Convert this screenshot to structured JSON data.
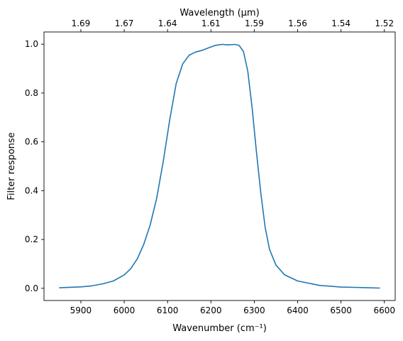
{
  "chart_data": {
    "type": "line",
    "title": "",
    "xlabel": "Wavenumber (cm⁻¹)",
    "xlabel_top": "Wavelength (μm)",
    "ylabel": "Filter response",
    "xlim": [
      5815,
      6625
    ],
    "ylim": [
      -0.05,
      1.05
    ],
    "grid": false,
    "x_ticks": [
      5900,
      6000,
      6100,
      6200,
      6300,
      6400,
      6500,
      6600
    ],
    "y_ticks": [
      0.0,
      0.2,
      0.4,
      0.6,
      0.8,
      1.0
    ],
    "y_tick_labels": [
      "0.0",
      "0.2",
      "0.4",
      "0.6",
      "0.8",
      "1.0"
    ],
    "top_ticks": [
      {
        "label": "1.69",
        "x": 5900
      },
      {
        "label": "1.67",
        "x": 6000
      },
      {
        "label": "1.64",
        "x": 6100
      },
      {
        "label": "1.61",
        "x": 6200
      },
      {
        "label": "1.59",
        "x": 6300
      },
      {
        "label": "1.56",
        "x": 6400
      },
      {
        "label": "1.54",
        "x": 6500
      },
      {
        "label": "1.52",
        "x": 6600
      }
    ],
    "series": [
      {
        "color": "#1f77b4",
        "points": [
          [
            5850,
            0.002
          ],
          [
            5875,
            0.004
          ],
          [
            5900,
            0.006
          ],
          [
            5925,
            0.01
          ],
          [
            5950,
            0.018
          ],
          [
            5975,
            0.03
          ],
          [
            6000,
            0.055
          ],
          [
            6015,
            0.08
          ],
          [
            6030,
            0.12
          ],
          [
            6045,
            0.18
          ],
          [
            6060,
            0.26
          ],
          [
            6075,
            0.37
          ],
          [
            6090,
            0.52
          ],
          [
            6105,
            0.69
          ],
          [
            6120,
            0.84
          ],
          [
            6135,
            0.92
          ],
          [
            6150,
            0.955
          ],
          [
            6165,
            0.968
          ],
          [
            6180,
            0.975
          ],
          [
            6195,
            0.985
          ],
          [
            6210,
            0.995
          ],
          [
            6225,
            0.999
          ],
          [
            6240,
            0.997
          ],
          [
            6255,
            0.999
          ],
          [
            6265,
            0.995
          ],
          [
            6275,
            0.97
          ],
          [
            6285,
            0.89
          ],
          [
            6295,
            0.74
          ],
          [
            6305,
            0.56
          ],
          [
            6315,
            0.39
          ],
          [
            6325,
            0.25
          ],
          [
            6335,
            0.16
          ],
          [
            6350,
            0.095
          ],
          [
            6370,
            0.055
          ],
          [
            6400,
            0.03
          ],
          [
            6450,
            0.012
          ],
          [
            6500,
            0.005
          ],
          [
            6550,
            0.003
          ],
          [
            6590,
            0.001
          ]
        ]
      }
    ]
  }
}
